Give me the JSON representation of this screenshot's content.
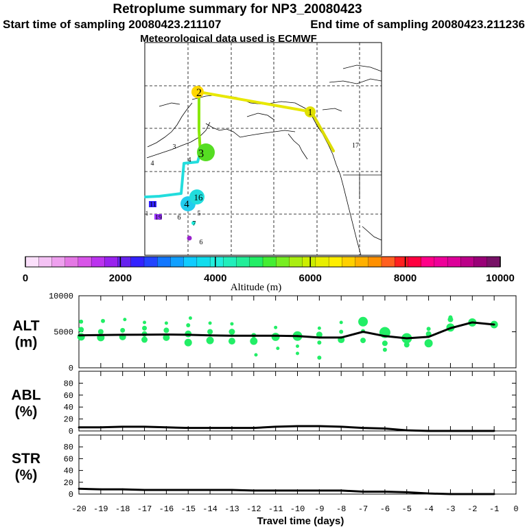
{
  "header": {
    "title": "Retroplume summary for NP3_20080423",
    "start_label": "Start time of sampling 20080423.211107",
    "end_label": "End time of sampling 20080423.211236",
    "met_label": "Meteorological data used is ECMWF"
  },
  "colors": {
    "alt_marker": "#22ee66",
    "line": "#000000",
    "map_coast": "#000000"
  },
  "map": {
    "track": [
      {
        "label": "1",
        "color": "#dddd00"
      },
      {
        "label": "2",
        "color": "#e8e800"
      },
      {
        "label": "3",
        "color": "#88e800"
      },
      {
        "label": "4",
        "color": "#22dddd"
      }
    ],
    "markers": [
      {
        "label": "1",
        "color": "#e0e000"
      },
      {
        "label": "2",
        "color": "#ffd700"
      },
      {
        "label": "3",
        "color": "#55dd22"
      },
      {
        "label": "4",
        "color": "#22ccee"
      },
      {
        "label": "16",
        "color": "#22dddd"
      },
      {
        "label": "17",
        "color": "#ffcc00"
      },
      {
        "label": "4",
        "color": "#cccc00"
      },
      {
        "label": "4",
        "color": "#cccc00"
      },
      {
        "label": "3",
        "color": "#222222"
      },
      {
        "label": "5",
        "color": "#1188ff"
      },
      {
        "label": "6",
        "color": "#22cc88"
      },
      {
        "label": "7",
        "color": "#22eedd"
      },
      {
        "label": "11",
        "color": "#3322ff"
      },
      {
        "label": "19",
        "color": "#9933ff"
      },
      {
        "label": "1",
        "color": "#22ccee"
      },
      {
        "label": "6",
        "color": "#9922cc"
      }
    ]
  },
  "colorbar": {
    "colors": [
      "#fbe0fb",
      "#f4c2f4",
      "#eea0ee",
      "#e478e4",
      "#d855e8",
      "#bb33ee",
      "#9922ee",
      "#6622ee",
      "#3322ff",
      "#2244ff",
      "#1177ff",
      "#11a0ff",
      "#11ccff",
      "#11ddee",
      "#22eedd",
      "#22eebb",
      "#22ee99",
      "#22ee66",
      "#44ee33",
      "#77ee22",
      "#aaee11",
      "#ccee00",
      "#e8ee00",
      "#ffee00",
      "#ffd000",
      "#ffb000",
      "#ff9000",
      "#ff6020",
      "#ff2020",
      "#ff0040",
      "#ff0088",
      "#ee0099",
      "#dd0099",
      "#bb0088",
      "#990077",
      "#771166"
    ],
    "tick_labels": [
      "0",
      "2000",
      "4000",
      "6000",
      "8000",
      "10000"
    ],
    "tick_values": [
      0,
      2000,
      4000,
      6000,
      8000,
      10000
    ],
    "range": [
      0,
      10000
    ],
    "label": "Altitude (m)"
  },
  "chart_data": [
    {
      "type": "line",
      "name": "ALT",
      "ylabel": "ALT\n(m)",
      "ylabel_lines": [
        "ALT",
        "(m)"
      ],
      "x": [
        -20,
        -19,
        -18,
        -17,
        -16,
        -15,
        -14,
        -13,
        -12,
        -11,
        -10,
        -9,
        -8,
        -7,
        -6,
        -5,
        -4,
        -3,
        -2,
        -1
      ],
      "values": [
        4500,
        4550,
        4580,
        4600,
        4620,
        4580,
        4500,
        4450,
        4450,
        4450,
        4400,
        4200,
        4200,
        5000,
        4400,
        4100,
        4300,
        5500,
        6300,
        6000
      ],
      "ylim": [
        0,
        10000
      ],
      "ytick_labels": [
        "0",
        "5000",
        "10000"
      ],
      "ytick_values": [
        0,
        5000,
        10000
      ],
      "scatter": [
        {
          "x": -19.9,
          "y": 4300,
          "size": 9
        },
        {
          "x": -19.9,
          "y": 5300,
          "size": 6
        },
        {
          "x": -19.9,
          "y": 6400,
          "size": 4
        },
        {
          "x": -19.0,
          "y": 4200,
          "size": 9
        },
        {
          "x": -19.0,
          "y": 5000,
          "size": 6
        },
        {
          "x": -18.9,
          "y": 6500,
          "size": 4
        },
        {
          "x": -18.0,
          "y": 4300,
          "size": 8
        },
        {
          "x": -18.0,
          "y": 5200,
          "size": 5
        },
        {
          "x": -17.9,
          "y": 6700,
          "size": 3
        },
        {
          "x": -17.0,
          "y": 3900,
          "size": 7
        },
        {
          "x": -17.0,
          "y": 4700,
          "size": 6
        },
        {
          "x": -17.0,
          "y": 5500,
          "size": 5
        },
        {
          "x": -17.0,
          "y": 6300,
          "size": 3
        },
        {
          "x": -16.0,
          "y": 4200,
          "size": 8
        },
        {
          "x": -16.0,
          "y": 5200,
          "size": 6
        },
        {
          "x": -16.0,
          "y": 6200,
          "size": 3
        },
        {
          "x": -15.0,
          "y": 3500,
          "size": 9
        },
        {
          "x": -15.0,
          "y": 4700,
          "size": 8
        },
        {
          "x": -15.0,
          "y": 5900,
          "size": 4
        },
        {
          "x": -14.9,
          "y": 6900,
          "size": 3
        },
        {
          "x": -14.0,
          "y": 3800,
          "size": 9
        },
        {
          "x": -14.0,
          "y": 5000,
          "size": 6
        },
        {
          "x": -14.0,
          "y": 6200,
          "size": 3
        },
        {
          "x": -13.0,
          "y": 3700,
          "size": 8
        },
        {
          "x": -13.0,
          "y": 5000,
          "size": 7
        },
        {
          "x": -13.0,
          "y": 6100,
          "size": 3
        },
        {
          "x": -12.0,
          "y": 3700,
          "size": 9
        },
        {
          "x": -12.0,
          "y": 4500,
          "size": 5
        },
        {
          "x": -11.9,
          "y": 1800,
          "size": 3
        },
        {
          "x": -11.0,
          "y": 4300,
          "size": 10
        },
        {
          "x": -11.0,
          "y": 5600,
          "size": 3
        },
        {
          "x": -10.9,
          "y": 2700,
          "size": 3
        },
        {
          "x": -10.0,
          "y": 4400,
          "size": 12
        },
        {
          "x": -10.0,
          "y": 3000,
          "size": 3
        },
        {
          "x": -10.0,
          "y": 2000,
          "size": 3
        },
        {
          "x": -9.0,
          "y": 4600,
          "size": 7
        },
        {
          "x": -9.0,
          "y": 3500,
          "size": 4
        },
        {
          "x": -9.0,
          "y": 1400,
          "size": 4
        },
        {
          "x": -9.0,
          "y": 5500,
          "size": 3
        },
        {
          "x": -8.0,
          "y": 3900,
          "size": 8
        },
        {
          "x": -8.0,
          "y": 5000,
          "size": 4
        },
        {
          "x": -8.0,
          "y": 6300,
          "size": 3
        },
        {
          "x": -7.0,
          "y": 6400,
          "size": 12
        },
        {
          "x": -7.0,
          "y": 3800,
          "size": 6
        },
        {
          "x": -7.0,
          "y": 5100,
          "size": 4
        },
        {
          "x": -6.0,
          "y": 4900,
          "size": 14
        },
        {
          "x": -6.0,
          "y": 3400,
          "size": 6
        },
        {
          "x": -6.0,
          "y": 2500,
          "size": 4
        },
        {
          "x": -5.0,
          "y": 4100,
          "size": 13
        },
        {
          "x": -5.0,
          "y": 3200,
          "size": 6
        },
        {
          "x": -4.0,
          "y": 3400,
          "size": 10
        },
        {
          "x": -4.0,
          "y": 4700,
          "size": 6
        },
        {
          "x": -4.0,
          "y": 5400,
          "size": 4
        },
        {
          "x": -3.0,
          "y": 5600,
          "size": 10
        },
        {
          "x": -3.0,
          "y": 6700,
          "size": 6
        },
        {
          "x": -3.0,
          "y": 7000,
          "size": 4
        },
        {
          "x": -2.0,
          "y": 6300,
          "size": 10
        },
        {
          "x": -1.0,
          "y": 6000,
          "size": 9
        }
      ]
    },
    {
      "type": "line",
      "name": "ABL",
      "ylabel": "ABL\n(%)",
      "ylabel_lines": [
        "ABL",
        "(%)"
      ],
      "x": [
        -20,
        -19,
        -18,
        -17,
        -16,
        -15,
        -14,
        -13,
        -12,
        -11,
        -10,
        -9,
        -8,
        -7,
        -6,
        -5,
        -4,
        -3,
        -2,
        -1
      ],
      "values": [
        6,
        6,
        7,
        7,
        6,
        5,
        5,
        5,
        5,
        7,
        8,
        8,
        7,
        5,
        4,
        1,
        0,
        0,
        0,
        0
      ],
      "ylim": [
        0,
        100
      ],
      "ytick_labels": [
        "0",
        "20",
        "40",
        "60",
        "80"
      ],
      "ytick_values": [
        0,
        20,
        40,
        60,
        80
      ]
    },
    {
      "type": "line",
      "name": "STR",
      "ylabel": "STR\n(%)",
      "ylabel_lines": [
        "STR",
        "(%)"
      ],
      "x": [
        -20,
        -19,
        -18,
        -17,
        -16,
        -15,
        -14,
        -13,
        -12,
        -11,
        -10,
        -9,
        -8,
        -7,
        -6,
        -5,
        -4,
        -3,
        -2,
        -1
      ],
      "values": [
        9,
        8,
        8,
        7,
        7,
        7,
        7,
        7,
        6,
        6,
        6,
        6,
        6,
        4,
        4,
        3,
        1,
        0,
        0,
        0
      ],
      "ylim": [
        0,
        100
      ],
      "ytick_labels": [
        "0",
        "20",
        "40",
        "60",
        "80"
      ],
      "ytick_values": [
        0,
        20,
        40,
        60,
        80
      ],
      "xlabel": "Travel time (days)",
      "xtick_labels": [
        "-20",
        "-19",
        "-18",
        "-17",
        "-16",
        "-15",
        "-14",
        "-13",
        "-12",
        "-11",
        "-10",
        "-9",
        "-8",
        "-7",
        "-6",
        "-5",
        "-4",
        "-3",
        "-2",
        "-1",
        "0"
      ],
      "xtick_values": [
        -20,
        -19,
        -18,
        -17,
        -16,
        -15,
        -14,
        -13,
        -12,
        -11,
        -10,
        -9,
        -8,
        -7,
        -6,
        -5,
        -4,
        -3,
        -2,
        -1,
        0
      ],
      "xlim": [
        -20,
        0
      ]
    }
  ]
}
